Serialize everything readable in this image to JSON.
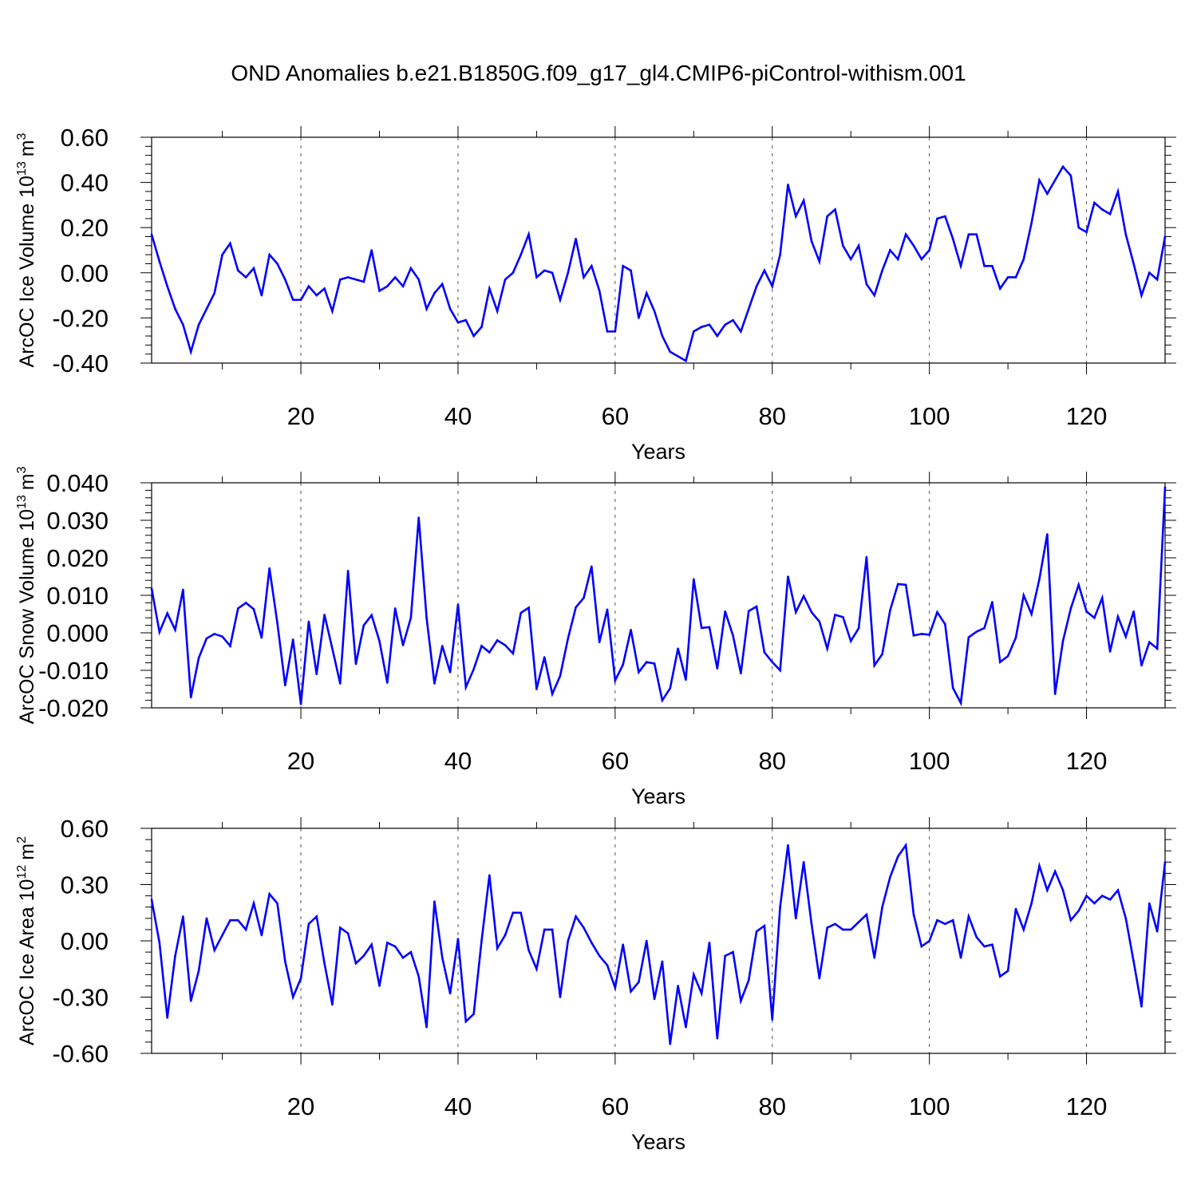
{
  "title": "OND Anomalies b.e21.B1850G.f09_g17_gl4.CMIP6-piControl-withism.001",
  "colors": {
    "series": "#0000ff",
    "axis": "#000000",
    "grid": "#555555"
  },
  "chart_data": [
    {
      "type": "line",
      "name": "ice-volume",
      "ylabel_main": "ArcOC Ice Volume 10",
      "ylabel_sup": "13",
      "ylabel_unit": "m",
      "ylabel_unit_sup": "3",
      "xlabel": "Years",
      "xlim": [
        1,
        130
      ],
      "ylim": [
        -0.4,
        0.6
      ],
      "xticks": [
        20,
        40,
        60,
        80,
        100,
        120
      ],
      "xtick_labels": [
        "20",
        "40",
        "60",
        "80",
        "100",
        "120"
      ],
      "yticks": [
        -0.4,
        -0.2,
        0.0,
        0.2,
        0.4,
        0.6
      ],
      "ytick_labels": [
        "-0.40",
        "-0.20",
        "0.00",
        "0.20",
        "0.40",
        "0.60"
      ],
      "series": [
        {
          "name": "ArcOC Ice Volume",
          "values": [
            0.17,
            0.05,
            -0.06,
            -0.16,
            -0.23,
            -0.35,
            -0.23,
            -0.16,
            -0.09,
            0.08,
            0.13,
            0.01,
            -0.02,
            0.02,
            -0.1,
            0.08,
            0.04,
            -0.03,
            -0.12,
            -0.12,
            -0.06,
            -0.1,
            -0.07,
            -0.17,
            -0.03,
            -0.02,
            -0.03,
            -0.04,
            0.1,
            -0.08,
            -0.06,
            -0.02,
            -0.06,
            0.02,
            -0.03,
            -0.16,
            -0.09,
            -0.05,
            -0.16,
            -0.22,
            -0.21,
            -0.28,
            -0.24,
            -0.07,
            -0.17,
            -0.03,
            0.0,
            0.08,
            0.17,
            -0.02,
            0.01,
            0.0,
            -0.12,
            0.0,
            0.15,
            -0.02,
            0.03,
            -0.08,
            -0.26,
            -0.26,
            0.03,
            0.01,
            -0.2,
            -0.09,
            -0.17,
            -0.28,
            -0.35,
            -0.37,
            -0.39,
            -0.26,
            -0.24,
            -0.23,
            -0.28,
            -0.23,
            -0.21,
            -0.26,
            -0.16,
            -0.06,
            0.01,
            -0.06,
            0.08,
            0.39,
            0.25,
            0.32,
            0.14,
            0.05,
            0.25,
            0.28,
            0.12,
            0.06,
            0.12,
            -0.05,
            -0.1,
            0.01,
            0.1,
            0.06,
            0.17,
            0.12,
            0.06,
            0.1,
            0.24,
            0.25,
            0.15,
            0.03,
            0.17,
            0.17,
            0.03,
            0.03,
            -0.07,
            -0.02,
            -0.02,
            0.06,
            0.22,
            0.41,
            0.35,
            0.41,
            0.47,
            0.43,
            0.2,
            0.18,
            0.31,
            0.28,
            0.26,
            0.36,
            0.17,
            0.04,
            -0.1,
            0.0,
            -0.03,
            0.16
          ]
        }
      ]
    },
    {
      "type": "line",
      "name": "snow-volume",
      "ylabel_main": "ArcOC Snow Volume 10",
      "ylabel_sup": "13",
      "ylabel_unit": "m",
      "ylabel_unit_sup": "3",
      "xlabel": "Years",
      "xlim": [
        1,
        130
      ],
      "ylim": [
        -0.02,
        0.04
      ],
      "xticks": [
        20,
        40,
        60,
        80,
        100,
        120
      ],
      "xtick_labels": [
        "20",
        "40",
        "60",
        "80",
        "100",
        "120"
      ],
      "yticks": [
        -0.02,
        -0.01,
        0.0,
        0.01,
        0.02,
        0.03,
        0.04
      ],
      "ytick_labels": [
        "-0.020",
        "-0.010",
        "0.000",
        "0.010",
        "0.020",
        "0.030",
        "0.040"
      ],
      "series": [
        {
          "name": "ArcOC Snow Volume",
          "values": [
            0.0118,
            0.0002,
            0.0052,
            0.0008,
            0.0115,
            -0.0172,
            -0.0067,
            -0.0015,
            -0.0003,
            -0.001,
            -0.0035,
            0.0065,
            0.008,
            0.0063,
            -0.0013,
            0.0172,
            0.0027,
            -0.014,
            -0.0018,
            -0.019,
            0.003,
            -0.011,
            0.0048,
            -0.0042,
            -0.0135,
            0.0165,
            -0.0083,
            0.002,
            0.0047,
            -0.0022,
            -0.0133,
            0.0065,
            -0.0033,
            0.004,
            0.0307,
            0.004,
            -0.0135,
            -0.0035,
            -0.0105,
            0.0075,
            -0.0145,
            -0.0097,
            -0.0035,
            -0.0052,
            -0.002,
            -0.0033,
            -0.0055,
            0.0053,
            0.0067,
            -0.015,
            -0.0065,
            -0.0163,
            -0.0115,
            -0.0015,
            0.0068,
            0.0093,
            0.0177,
            -0.0025,
            0.0062,
            -0.0127,
            -0.0085,
            0.0008,
            -0.0105,
            -0.0078,
            -0.0082,
            -0.018,
            -0.0148,
            -0.0042,
            -0.0125,
            0.0143,
            0.0013,
            0.0015,
            -0.0095,
            0.0057,
            -0.0007,
            -0.0108,
            0.0058,
            0.007,
            -0.0052,
            -0.0078,
            -0.01,
            0.015,
            0.0055,
            0.0098,
            0.0055,
            0.003,
            -0.0042,
            0.0048,
            0.0042,
            -0.0022,
            0.0012,
            0.0202,
            -0.0087,
            -0.0057,
            0.006,
            0.013,
            0.0128,
            -0.0007,
            -0.0003,
            -0.0005,
            0.0055,
            0.0023,
            -0.0147,
            -0.0187,
            -0.0012,
            0.0003,
            0.0013,
            0.0082,
            -0.0078,
            -0.0062,
            -0.0013,
            0.01,
            0.005,
            0.0143,
            0.0263,
            -0.0163,
            -0.0022,
            0.0065,
            0.0128,
            0.0057,
            0.004,
            0.0093,
            -0.005,
            0.0043,
            -0.001,
            0.0057,
            -0.0087,
            -0.0025,
            -0.0042,
            0.0388
          ]
        }
      ]
    },
    {
      "type": "line",
      "name": "ice-area",
      "ylabel_main": "ArcOC Ice Area 10",
      "ylabel_sup": "12",
      "ylabel_unit": "m",
      "ylabel_unit_sup": "2",
      "xlabel": "Years",
      "xlim": [
        1,
        130
      ],
      "ylim": [
        -0.6,
        0.6
      ],
      "xticks": [
        20,
        40,
        60,
        80,
        100,
        120
      ],
      "xtick_labels": [
        "20",
        "40",
        "60",
        "80",
        "100",
        "120"
      ],
      "yticks": [
        -0.6,
        -0.3,
        0.0,
        0.3,
        0.6
      ],
      "ytick_labels": [
        "-0.60",
        "-0.30",
        "0.00",
        "0.30",
        "0.60"
      ],
      "series": [
        {
          "name": "ArcOC Ice Area",
          "values": [
            0.22,
            -0.01,
            -0.41,
            -0.08,
            0.13,
            -0.32,
            -0.16,
            0.12,
            -0.05,
            0.03,
            0.11,
            0.11,
            0.06,
            0.2,
            0.03,
            0.25,
            0.2,
            -0.11,
            -0.3,
            -0.2,
            0.09,
            0.13,
            -0.12,
            -0.34,
            0.07,
            0.04,
            -0.12,
            -0.08,
            -0.02,
            -0.24,
            -0.01,
            -0.03,
            -0.09,
            -0.06,
            -0.19,
            -0.46,
            0.21,
            -0.09,
            -0.28,
            0.01,
            -0.43,
            -0.39,
            0.0,
            0.35,
            -0.04,
            0.03,
            0.15,
            0.15,
            -0.05,
            -0.15,
            0.06,
            0.06,
            -0.3,
            0.0,
            0.13,
            0.07,
            -0.01,
            -0.08,
            -0.13,
            -0.25,
            -0.02,
            -0.27,
            -0.22,
            0.0,
            -0.31,
            -0.11,
            -0.55,
            -0.24,
            -0.46,
            -0.18,
            -0.28,
            -0.01,
            -0.52,
            -0.08,
            -0.06,
            -0.32,
            -0.21,
            0.05,
            0.08,
            -0.42,
            0.18,
            0.51,
            0.12,
            0.42,
            0.09,
            -0.2,
            0.07,
            0.09,
            0.06,
            0.06,
            0.1,
            0.14,
            -0.09,
            0.18,
            0.34,
            0.45,
            0.51,
            0.14,
            -0.03,
            0.0,
            0.11,
            0.09,
            0.11,
            -0.09,
            0.13,
            0.02,
            -0.03,
            -0.02,
            -0.19,
            -0.16,
            0.17,
            0.06,
            0.2,
            0.4,
            0.27,
            0.37,
            0.27,
            0.11,
            0.16,
            0.24,
            0.2,
            0.24,
            0.22,
            0.27,
            0.12,
            -0.11,
            -0.35,
            0.2,
            0.05,
            0.42
          ]
        }
      ]
    }
  ]
}
